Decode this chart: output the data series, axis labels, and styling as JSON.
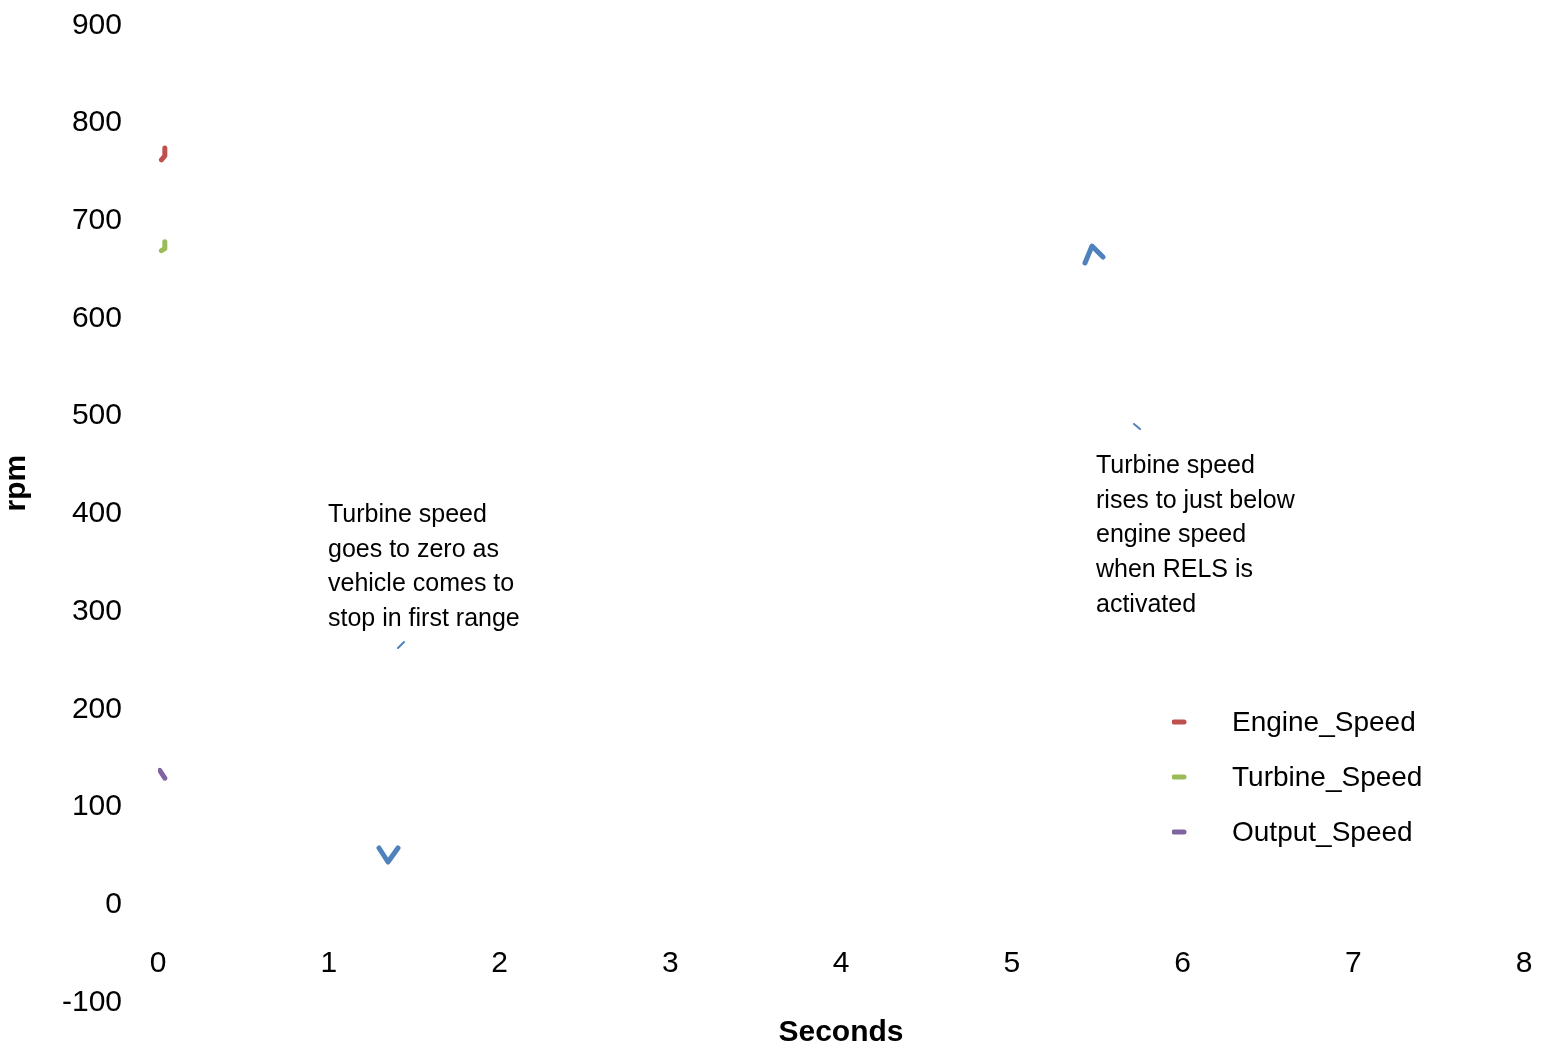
{
  "chart_data": {
    "type": "line",
    "xlabel": "Seconds",
    "ylabel": "rpm",
    "xlim": [
      0,
      8
    ],
    "xticks": [
      0,
      1,
      2,
      3,
      4,
      5,
      6,
      7,
      8
    ],
    "ylim": [
      -100,
      900
    ],
    "yticks": [
      -100,
      0,
      100,
      200,
      300,
      400,
      500,
      600,
      700,
      800,
      900
    ],
    "grid": false,
    "legend": "bottom right",
    "series": [
      {
        "name": "Engine_Speed",
        "color": "#c0504d",
        "x": [
          0.02,
          0.04,
          0.04
        ],
        "values": [
          760,
          764,
          772
        ]
      },
      {
        "name": "Turbine_Speed",
        "color": "#9bbb59",
        "x": [
          0.02,
          0.04,
          0.04
        ],
        "values": [
          667,
          669,
          676
        ]
      },
      {
        "name": "Output_Speed",
        "color": "#8064a2",
        "x": [
          0.01,
          0.04
        ],
        "values": [
          135,
          127
        ]
      }
    ],
    "annotations": [
      "Turbine speed\ngoes to zero as\nvehicle comes to\nstop in first range",
      "Turbine speed\nrises to just below\nengine speed\nwhen RELS is\nactivated"
    ]
  }
}
